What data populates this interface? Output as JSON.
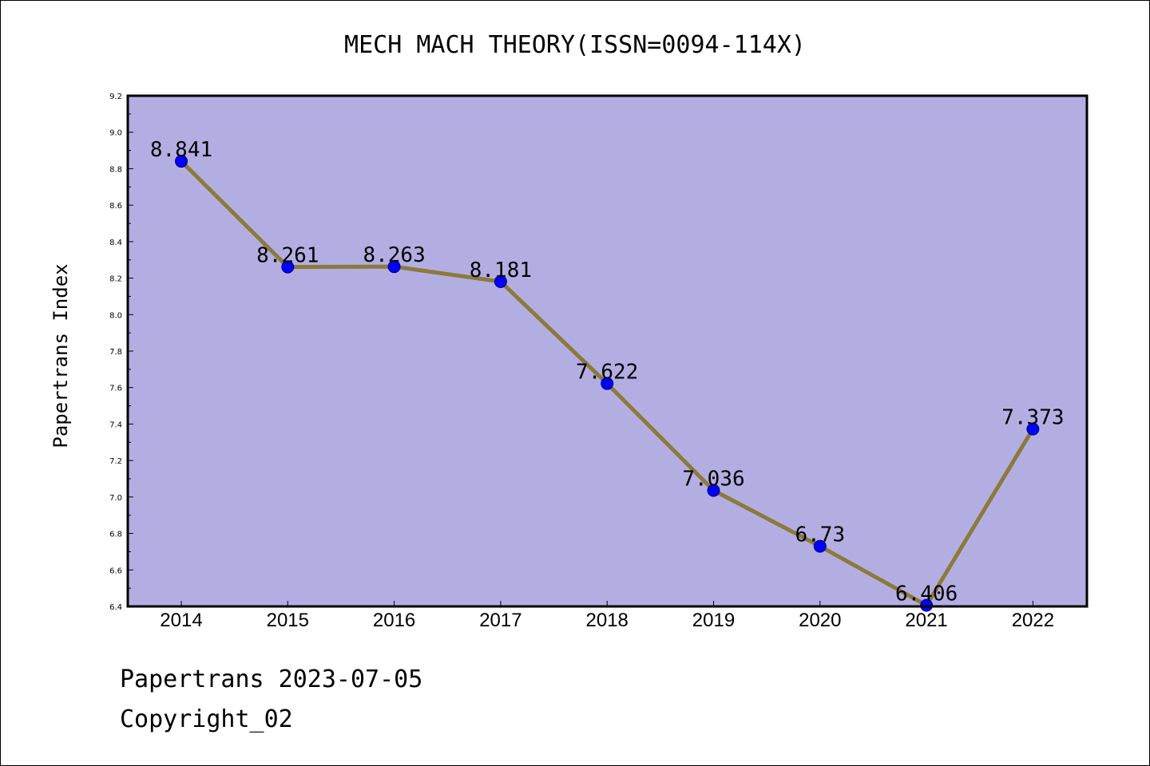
{
  "chart_data": {
    "type": "line",
    "title": "MECH MACH THEORY(ISSN=0094-114X)",
    "xlabel": "",
    "ylabel": "Papertrans Index",
    "categories": [
      "2014",
      "2015",
      "2016",
      "2017",
      "2018",
      "2019",
      "2020",
      "2021",
      "2022"
    ],
    "values": [
      8.841,
      8.261,
      8.263,
      8.181,
      7.622,
      7.036,
      6.73,
      6.406,
      7.373
    ],
    "data_labels": [
      "8.841",
      "8.261",
      "8.263",
      "8.181",
      "7.622",
      "7.036",
      "6.73",
      "6.406",
      "7.373"
    ],
    "ylim": [
      6.4,
      9.2
    ],
    "yticks": [
      "6.4",
      "6.6",
      "6.8",
      "7.0",
      "7.2",
      "7.4",
      "7.6",
      "7.8",
      "8.0",
      "8.2",
      "8.4",
      "8.6",
      "8.8",
      "9.0",
      "9.2"
    ],
    "grid": false,
    "legend": "none",
    "colors": {
      "plot_background": "#b3aee2",
      "line": "#8b7a3a",
      "marker": "#0000ff"
    }
  },
  "footer": {
    "line1": "Papertrans 2023-07-05",
    "line2": "Copyright_02"
  }
}
